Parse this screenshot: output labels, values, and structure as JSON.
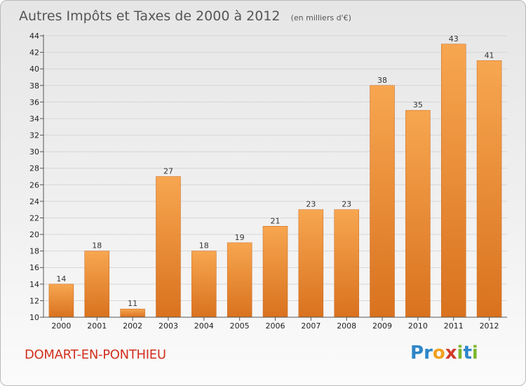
{
  "title": "Autres Impôts et Taxes de 2000 à 2012",
  "subtitle": "(en milliers d'€)",
  "commune": "DOMART-EN-PONTHIEU",
  "logo": {
    "letters": [
      "P",
      "r",
      "o",
      "x",
      "i",
      "t",
      "i"
    ],
    "colors": [
      "#2e86c8",
      "#2e86c8",
      "#f0a020",
      "#d23a2a",
      "#7cb82f",
      "#2e86c8",
      "#7cb82f"
    ]
  },
  "colors": {
    "bar_top": "#f7a650",
    "bar_bottom": "#d9721f",
    "bar_edge": "#c9661a"
  },
  "chart_data": {
    "type": "bar",
    "title": "Autres Impôts et Taxes de 2000 à 2012",
    "subtitle": "(en milliers d'€)",
    "categories": [
      "2000",
      "2001",
      "2002",
      "2003",
      "2004",
      "2005",
      "2006",
      "2007",
      "2008",
      "2009",
      "2010",
      "2011",
      "2012"
    ],
    "values": [
      14,
      18,
      11,
      27,
      18,
      19,
      21,
      23,
      23,
      38,
      35,
      43,
      41
    ],
    "xlabel": "",
    "ylabel": "",
    "ylim": [
      10,
      44
    ],
    "yticks": [
      10,
      12,
      14,
      16,
      18,
      20,
      22,
      24,
      26,
      28,
      30,
      32,
      34,
      36,
      38,
      40,
      42,
      44
    ],
    "grid": true,
    "legend": "none"
  }
}
